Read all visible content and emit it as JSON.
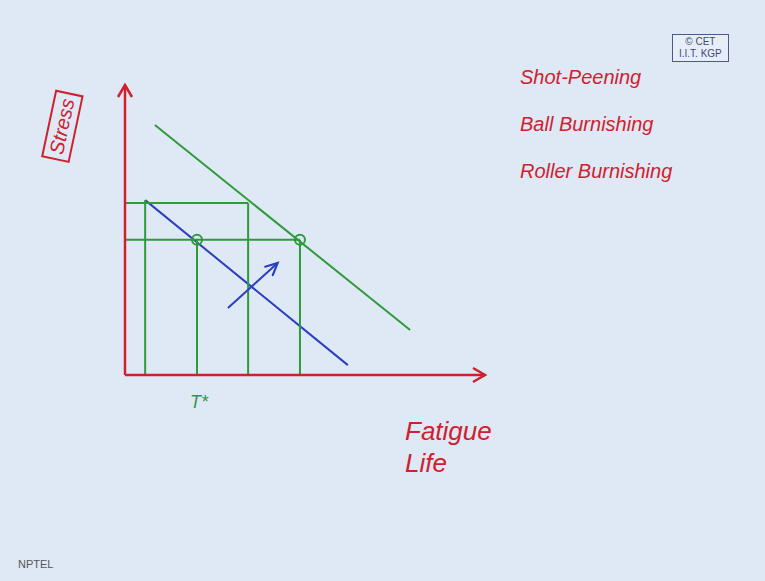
{
  "chart_data": {
    "type": "line",
    "xlabel": "Fatigue Life",
    "ylabel": "Stress",
    "annotations": [
      "T*",
      "Shot-Peening",
      "Ball Burnishing",
      "Roller Burnishing",
      "© CET",
      "I.I.T. KGP",
      "NPTEL"
    ],
    "xlim": [
      0,
      100
    ],
    "ylim": [
      0,
      100
    ],
    "xticks": [],
    "yticks": [],
    "tick_labels": false,
    "grid": false,
    "legend": false,
    "series": [
      {
        "color": "#2a3fbf",
        "line_style": "solid",
        "x": [
          5.6,
          61.9
        ],
        "values": [
          60.3,
          3.4
        ]
      },
      {
        "color": "#2e9a3a",
        "line_style": "solid",
        "x": [
          8.3,
          79.2
        ],
        "values": [
          86.2,
          15.5
        ]
      },
      {
        "color": "#2e9a3a",
        "line_style": "solid",
        "x": [
          0,
          34.2
        ],
        "values": [
          59.3,
          59.3
        ]
      },
      {
        "color": "#2e9a3a",
        "line_style": "solid",
        "x": [
          34.2,
          34.2
        ],
        "values": [
          59.3,
          0
        ]
      },
      {
        "color": "#2e9a3a",
        "line_style": "solid",
        "x": [
          0,
          48.6
        ],
        "values": [
          46.6,
          46.6
        ]
      },
      {
        "color": "#2e9a3a",
        "line_style": "solid",
        "x": [
          48.6,
          48.6
        ],
        "values": [
          46.6,
          0
        ]
      },
      {
        "color": "#2e9a3a",
        "line_style": "solid",
        "x": [
          20,
          20
        ],
        "values": [
          46.6,
          0
        ]
      },
      {
        "color": "#2e9a3a",
        "line_style": "solid",
        "x": [
          5.6,
          5.6
        ],
        "values": [
          60.3,
          0
        ]
      },
      {
        "type": "scatter",
        "color": "#2e9a3a",
        "marker": "circle",
        "x": [
          20,
          48.6
        ],
        "values": [
          46.6,
          46.6
        ]
      },
      {
        "color": "#2a3fbf",
        "line_style": "solid",
        "marker": "arrow",
        "x": [
          28.6,
          42.4
        ],
        "values": [
          23.1,
          38.6
        ]
      }
    ]
  }
}
